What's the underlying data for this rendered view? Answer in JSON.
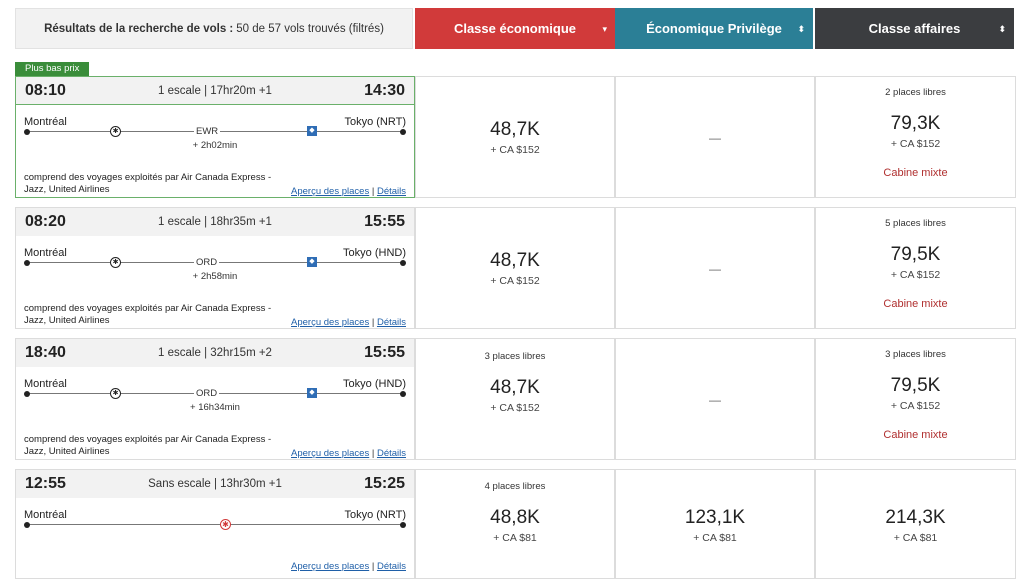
{
  "header": {
    "summary_label": "Résultats de la recherche de vols :",
    "summary_value": "50 de 57 vols trouvés (filtrés)",
    "cabins": [
      {
        "label": "Classe économique",
        "sort_icon": "▾"
      },
      {
        "label": "Économique Privilège",
        "sort_icon": "⬍"
      },
      {
        "label": "Classe affaires",
        "sort_icon": "⬍"
      }
    ]
  },
  "badge": "Plus bas prix",
  "common": {
    "operated": "comprend des voyages exploités par Air Canada Express - Jazz, United Airlines",
    "seat_preview": "Aperçu des places",
    "details": "Détails",
    "sep": "|"
  },
  "flights": [
    {
      "dep": "08:10",
      "arr": "14:30",
      "stops": "1 escale | 17hr20m +1",
      "origin": "Montréal",
      "destination": "Tokyo (NRT)",
      "hub": "EWR",
      "layover": "+ 2h02min",
      "eco": {
        "seats": "",
        "points": "48,7K",
        "tax": "+ CA $152"
      },
      "prem": {
        "dash": "—"
      },
      "bus": {
        "seats": "2 places libres",
        "points": "79,3K",
        "tax": "+ CA $152",
        "mixed": "Cabine mixte"
      }
    },
    {
      "dep": "08:20",
      "arr": "15:55",
      "stops": "1 escale | 18hr35m +1",
      "origin": "Montréal",
      "destination": "Tokyo (HND)",
      "hub": "ORD",
      "layover": "+ 2h58min",
      "eco": {
        "seats": "",
        "points": "48,7K",
        "tax": "+ CA $152"
      },
      "prem": {
        "dash": "—"
      },
      "bus": {
        "seats": "5 places libres",
        "points": "79,5K",
        "tax": "+ CA $152",
        "mixed": "Cabine mixte"
      }
    },
    {
      "dep": "18:40",
      "arr": "15:55",
      "stops": "1 escale | 32hr15m +2",
      "origin": "Montréal",
      "destination": "Tokyo (HND)",
      "hub": "ORD",
      "layover": "+ 16h34min",
      "eco": {
        "seats": "3 places libres",
        "points": "48,7K",
        "tax": "+ CA $152"
      },
      "prem": {
        "dash": "—"
      },
      "bus": {
        "seats": "3 places libres",
        "points": "79,5K",
        "tax": "+ CA $152",
        "mixed": "Cabine mixte"
      }
    },
    {
      "dep": "12:55",
      "arr": "15:25",
      "stops": "Sans escale | 13hr30m +1",
      "origin": "Montréal",
      "destination": "Tokyo (NRT)",
      "eco": {
        "seats": "4 places libres",
        "points": "48,8K",
        "tax": "+ CA $81"
      },
      "prem": {
        "points": "123,1K",
        "tax": "+ CA $81"
      },
      "bus": {
        "points": "214,3K",
        "tax": "+ CA $81"
      }
    }
  ]
}
